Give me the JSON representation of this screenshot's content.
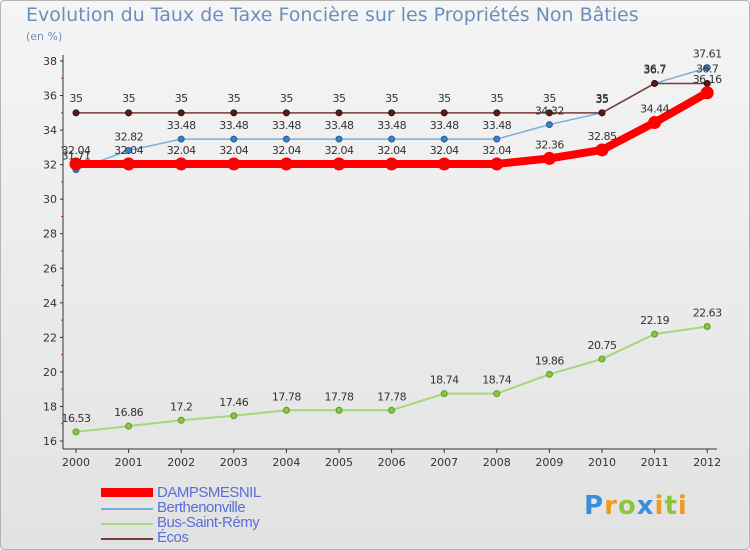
{
  "title": "Evolution du Taux de Taxe Foncière sur les Propriétés Non Bâties",
  "unit_label": "(en %)",
  "logo": {
    "letters": [
      "P",
      "r",
      "o",
      "x",
      "i",
      "t",
      "i"
    ],
    "colors": [
      "#3b8fd9",
      "#f29a1f",
      "#8cc63f",
      "#3b8fd9",
      "#f29a1f",
      "#8cc63f",
      "#f29a1f"
    ]
  },
  "chart_data": {
    "type": "line",
    "title": "Evolution du Taux de Taxe Foncière sur les Propriétés Non Bâties",
    "ylabel": "(en %)",
    "x": [
      "2000",
      "2001",
      "2002",
      "2003",
      "2004",
      "2005",
      "2006",
      "2007",
      "2008",
      "2009",
      "2010",
      "2011",
      "2012"
    ],
    "ylim": [
      16,
      38
    ],
    "yticks": [
      16,
      18,
      20,
      22,
      24,
      26,
      28,
      30,
      32,
      34,
      36,
      38
    ],
    "grid": false,
    "legend_position": "bottom-left",
    "series": [
      {
        "name": "DAMPSMESNIL",
        "color": "#ff0000",
        "values": [
          32.04,
          32.04,
          32.04,
          32.04,
          32.04,
          32.04,
          32.04,
          32.04,
          32.04,
          32.36,
          32.85,
          34.44,
          36.16
        ],
        "labels": [
          "32.04",
          "32.04",
          "32.04",
          "32.04",
          "32.04",
          "32.04",
          "32.04",
          "32.04",
          "32.04",
          "32.36",
          "32.85",
          "34.44",
          "36.16"
        ]
      },
      {
        "name": "Berthenonville",
        "color": "#7aaedc",
        "values": [
          31.71,
          32.82,
          33.48,
          33.48,
          33.48,
          33.48,
          33.48,
          33.48,
          33.48,
          34.32,
          35,
          36.7,
          37.61
        ],
        "labels": [
          "31.71",
          "32.82",
          "33.48",
          "33.48",
          "33.48",
          "33.48",
          "33.48",
          "33.48",
          "33.48",
          "34.32",
          "35",
          "36.7",
          "37.61"
        ]
      },
      {
        "name": "Bus-Saint-Rémy",
        "color": "#a8d67c",
        "values": [
          16.53,
          16.86,
          17.2,
          17.46,
          17.78,
          17.78,
          17.78,
          18.74,
          18.74,
          19.86,
          20.75,
          22.19,
          22.63
        ],
        "labels": [
          "16.53",
          "16.86",
          "17.2",
          "17.46",
          "17.78",
          "17.78",
          "17.78",
          "18.74",
          "18.74",
          "19.86",
          "20.75",
          "22.19",
          "22.63"
        ]
      },
      {
        "name": "Écos",
        "color": "#7a3b3b",
        "values": [
          35,
          35,
          35,
          35,
          35,
          35,
          35,
          35,
          35,
          35,
          35,
          36.7,
          36.7
        ],
        "labels": [
          "35",
          "35",
          "35",
          "35",
          "35",
          "35",
          "35",
          "35",
          "35",
          "35",
          "35",
          "36.7",
          "36.7"
        ]
      }
    ]
  }
}
